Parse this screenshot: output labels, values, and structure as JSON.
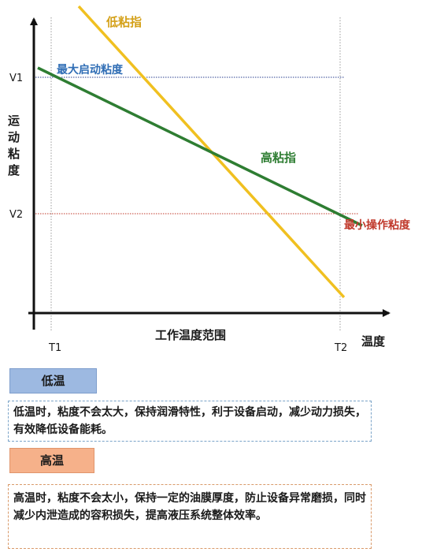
{
  "diagram": {
    "y_axis_label": "运动粘度",
    "x_axis_label": "温度",
    "x_range_label": "工作温度范围",
    "y_ticks": [
      "V1",
      "V2"
    ],
    "x_ticks": [
      "T1",
      "T2"
    ],
    "max_start_label": "最大启动粘度",
    "min_operating_label": "最小操作粘度",
    "low_vi_label": "低粘指",
    "high_vi_label": "高粘指",
    "colors": {
      "low_vi_line": "#f0c020",
      "high_vi_line": "#2e7d32",
      "v1_ref": "#2a3f8f",
      "v2_ref": "#c0392b",
      "max_start_text": "#2f6db5",
      "min_operating_text": "#c0392b",
      "low_vi_text": "#d4a017",
      "high_vi_text": "#2e7d32"
    }
  },
  "chart_data": {
    "type": "line",
    "xlabel": "温度",
    "ylabel": "运动粘度",
    "x_ticks": [
      "T1",
      "T2"
    ],
    "y_ticks": [
      "V1",
      "V2"
    ],
    "series": [
      {
        "name": "低粘指",
        "description_points": [
          [
            "left-top",
            "above V1"
          ],
          [
            "right",
            "below V2"
          ]
        ]
      },
      {
        "name": "高粘指",
        "description_points": [
          [
            "near T1",
            "V1"
          ],
          [
            "near T2",
            "V2"
          ]
        ]
      }
    ]
  },
  "low_temp": {
    "tag": "低温",
    "text": "低温时，粘度不会太大，保持润滑特性，利于设备启动，减少动力损失，有效降低设备能耗。"
  },
  "high_temp": {
    "tag": "高温",
    "text": "高温时，粘度不会太小，保持一定的油膜厚度，防止设备异常磨损，同时减少内泄造成的容积损失，提高液压系统整体效率。"
  }
}
